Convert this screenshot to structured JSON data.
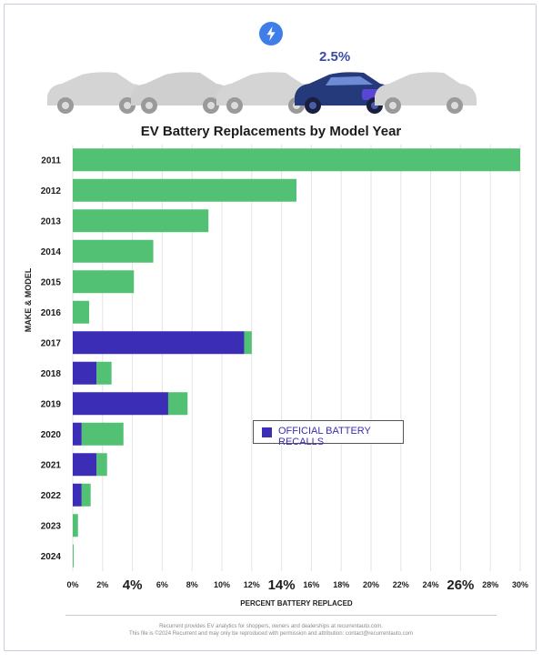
{
  "header": {
    "highlight_pct": "2.5%"
  },
  "chart_data": {
    "type": "bar",
    "orientation": "horizontal",
    "stacked": true,
    "title": "EV Battery Replacements by Model Year",
    "xlabel": "PERCENT BATTERY REPLACED",
    "ylabel": "MAKE & MODEL",
    "xlim": [
      0,
      30
    ],
    "xticks": [
      "0%",
      "2%",
      "4%",
      "6%",
      "8%",
      "10%",
      "12%",
      "14%",
      "16%",
      "18%",
      "20%",
      "22%",
      "24%",
      "26%",
      "28%",
      "30%"
    ],
    "emphasized_xticks": [
      "4%",
      "14%",
      "26%"
    ],
    "categories": [
      "2011",
      "2012",
      "2013",
      "2014",
      "2015",
      "2016",
      "2017",
      "2018",
      "2019",
      "2020",
      "2021",
      "2022",
      "2023",
      "2024"
    ],
    "series": [
      {
        "name": "OFFICIAL BATTERY RECALLS",
        "color": "#3b2db5",
        "values": [
          0,
          0,
          0,
          0,
          0,
          0,
          11.5,
          1.6,
          6.4,
          0.6,
          1.6,
          0.6,
          0,
          0
        ]
      },
      {
        "name": "",
        "color": "#52c174",
        "values": [
          30,
          15.0,
          9.1,
          5.4,
          4.1,
          1.1,
          0.5,
          1.0,
          1.3,
          2.8,
          0.7,
          0.6,
          0.35,
          0.05
        ]
      }
    ],
    "totals": [
      30,
      15.0,
      9.1,
      5.4,
      4.1,
      1.1,
      12.0,
      2.6,
      7.7,
      3.4,
      2.3,
      1.2,
      0.35,
      0.05
    ],
    "legend": {
      "label": "OFFICIAL BATTERY RECALLS",
      "placement": "center-right"
    },
    "grid": true
  },
  "footer": {
    "line1": "Recurrent provides EV analytics for shoppers, owners and dealerships at recurrentauto.com.",
    "line2": "This file is ©2024 Recurrent and may only be reproduced with permission and attribution: contact@recurrentauto.com"
  },
  "colors": {
    "recall": "#3b2db5",
    "replaced": "#52c174",
    "grid": "#e3e3e3"
  }
}
